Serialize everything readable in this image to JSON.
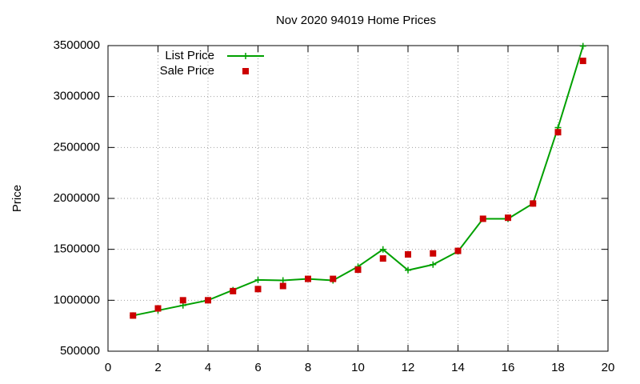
{
  "chart_data": {
    "type": "line",
    "title": "Nov 2020 94019 Home Prices",
    "y_label": "Price",
    "x": [
      1,
      2,
      3,
      4,
      5,
      6,
      7,
      8,
      9,
      10,
      11,
      12,
      13,
      14,
      15,
      16,
      17,
      18,
      19
    ],
    "series": [
      {
        "name": "List Price",
        "color": "#00a000",
        "style": "linespoints",
        "values": [
          850000,
          900000,
          950000,
          1000000,
          1100000,
          1200000,
          1195000,
          1210000,
          1195000,
          1330000,
          1499000,
          1295000,
          1350000,
          1480000,
          1800000,
          1800000,
          1950000,
          2695000,
          3495000
        ]
      },
      {
        "name": "Sale Price",
        "color": "#cc0000",
        "style": "points",
        "values": [
          850000,
          920000,
          1000000,
          1000000,
          1090000,
          1110000,
          1140000,
          1210000,
          1210000,
          1300000,
          1410000,
          1450000,
          1460000,
          1485000,
          1800000,
          1810000,
          1950000,
          2650000,
          3350000
        ]
      }
    ],
    "xlim": [
      0,
      20
    ],
    "xticks": [
      0,
      2,
      4,
      6,
      8,
      10,
      12,
      14,
      16,
      18,
      20
    ],
    "ylim": [
      500000,
      3500000
    ],
    "yticks": [
      500000,
      1000000,
      1500000,
      2000000,
      2500000,
      3000000,
      3500000
    ],
    "grid": true,
    "legend": "top-left"
  }
}
